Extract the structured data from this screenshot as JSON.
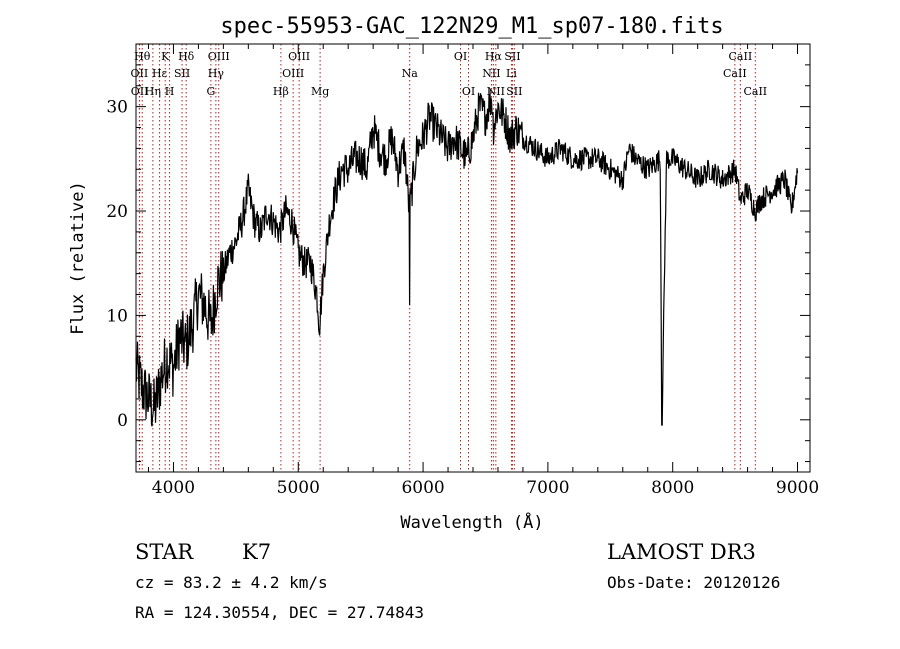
{
  "chart_data": {
    "type": "line",
    "title": "spec-55953-GAC_122N29_M1_sp07-180.fits",
    "xlabel": "Wavelength (Å)",
    "ylabel": "Flux (relative)",
    "xlim": [
      3700,
      9100
    ],
    "ylim": [
      -5,
      36
    ],
    "xticks": [
      4000,
      5000,
      6000,
      7000,
      8000,
      9000
    ],
    "yticks": [
      0,
      10,
      20,
      30
    ],
    "series": [
      {
        "name": "spectrum",
        "x": [
          3700,
          3750,
          3800,
          3850,
          3900,
          3950,
          4000,
          4050,
          4100,
          4150,
          4200,
          4250,
          4300,
          4350,
          4400,
          4450,
          4500,
          4550,
          4600,
          4650,
          4700,
          4750,
          4800,
          4850,
          4900,
          4950,
          5000,
          5050,
          5100,
          5150,
          5170,
          5200,
          5250,
          5300,
          5350,
          5400,
          5450,
          5500,
          5550,
          5600,
          5650,
          5700,
          5750,
          5800,
          5850,
          5890,
          5950,
          6000,
          6050,
          6100,
          6150,
          6200,
          6250,
          6300,
          6350,
          6400,
          6450,
          6500,
          6550,
          6563,
          6600,
          6650,
          6700,
          6750,
          6800,
          6900,
          7000,
          7100,
          7200,
          7300,
          7400,
          7500,
          7600,
          7650,
          7700,
          7800,
          7900,
          7914,
          7950,
          8000,
          8100,
          8200,
          8300,
          8400,
          8500,
          8542,
          8600,
          8662,
          8700,
          8800,
          8900,
          8950,
          9000
        ],
        "y": [
          5,
          3,
          2,
          1,
          4,
          6,
          5,
          8,
          7,
          9,
          12,
          11,
          9,
          13,
          14,
          16,
          17,
          19,
          22,
          19,
          18,
          20,
          19,
          18,
          20,
          19,
          16,
          15,
          15,
          12,
          9,
          14,
          19,
          22,
          24,
          24,
          25,
          25,
          24,
          28,
          26,
          25,
          27,
          24,
          26,
          20,
          26,
          27,
          29,
          28,
          27,
          26,
          27,
          26,
          25,
          27,
          30,
          29,
          31,
          28,
          30,
          29,
          27,
          28,
          27,
          26,
          25,
          26,
          25,
          25,
          25,
          24,
          23,
          26,
          25,
          24,
          25,
          -0.5,
          25,
          25,
          24,
          23,
          24,
          23,
          24,
          21,
          22,
          20,
          21,
          22,
          23,
          20,
          24
        ]
      }
    ],
    "line_markers": [
      {
        "wave": 3750,
        "label": "Hθ",
        "row": 0
      },
      {
        "wave": 3727,
        "label": "OII",
        "row": 1
      },
      {
        "wave": 3729,
        "label": "OII",
        "row": 2
      },
      {
        "wave": 3835,
        "label": "Hη",
        "row": 2
      },
      {
        "wave": 3889,
        "label": "Hε",
        "row": 1
      },
      {
        "wave": 3934,
        "label": "K",
        "row": 0
      },
      {
        "wave": 3969,
        "label": "H",
        "row": 2
      },
      {
        "wave": 4069,
        "label": "SII",
        "row": 1
      },
      {
        "wave": 4102,
        "label": "Hδ",
        "row": 0
      },
      {
        "wave": 4300,
        "label": "G",
        "row": 2
      },
      {
        "wave": 4340,
        "label": "Hγ",
        "row": 1
      },
      {
        "wave": 4363,
        "label": "OIII",
        "row": 0
      },
      {
        "wave": 4861,
        "label": "Hβ",
        "row": 2
      },
      {
        "wave": 4959,
        "label": "OIII",
        "row": 1
      },
      {
        "wave": 5007,
        "label": "OIII",
        "row": 0
      },
      {
        "wave": 5175,
        "label": "Mg",
        "row": 2
      },
      {
        "wave": 5893,
        "label": "Na",
        "row": 1
      },
      {
        "wave": 6300,
        "label": "OI",
        "row": 0
      },
      {
        "wave": 6364,
        "label": "OI",
        "row": 2
      },
      {
        "wave": 6548,
        "label": "NII",
        "row": 1
      },
      {
        "wave": 6563,
        "label": "Hα",
        "row": 0
      },
      {
        "wave": 6583,
        "label": "NII",
        "row": 2
      },
      {
        "wave": 6708,
        "label": "Li",
        "row": 1
      },
      {
        "wave": 6716,
        "label": "SII",
        "row": 0
      },
      {
        "wave": 6731,
        "label": "SII",
        "row": 2
      },
      {
        "wave": 8498,
        "label": "CaII",
        "row": 1
      },
      {
        "wave": 8542,
        "label": "CaII",
        "row": 0
      },
      {
        "wave": 8662,
        "label": "CaII",
        "row": 2
      }
    ]
  },
  "info": {
    "class": "STAR",
    "subclass": "K7",
    "survey": "LAMOST DR3",
    "cz": "cz = 83.2 ± 4.2 km/s",
    "obs_date": "Obs-Date: 20120126",
    "coords": "RA = 124.30554, DEC =  27.74843"
  },
  "colors": {
    "spectrum": "#000000",
    "marker": "#b22222",
    "axis": "#000000"
  }
}
